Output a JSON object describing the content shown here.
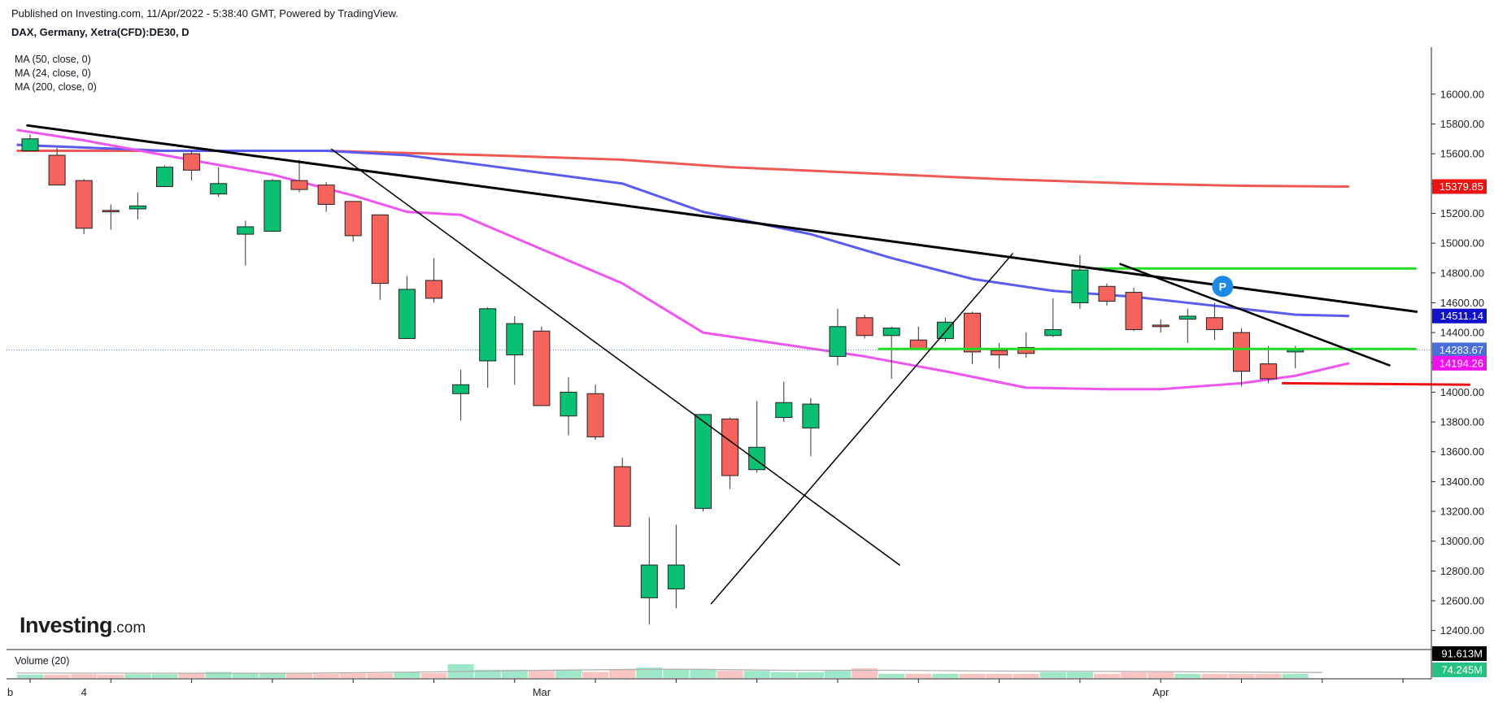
{
  "header": {
    "published": "Published on Investing.com, 11/Apr/2022 - 5:38:40 GMT, Powered by TradingView.",
    "symbol": "DAX, Germany, Xetra(CFD):DE30, D"
  },
  "indicators": {
    "ma50": "MA (50, close, 0)",
    "ma24": "MA (24, close, 0)",
    "ma200": "MA (200, close, 0)",
    "volume": "Volume (20)"
  },
  "logo": {
    "name": "Investing",
    "suffix": ".com"
  },
  "colors": {
    "up": "#0ac173",
    "down": "#f4635c",
    "wick": "#333333",
    "ma50": "#5b5bf0",
    "ma24": "#ee55ee",
    "ma200": "#f05a55",
    "support_green": "#22dd22",
    "support_red": "#ee1111",
    "trendline": "#000000",
    "price_line": "#4a6fd8",
    "vol_up": "#9ee8c8",
    "vol_down": "#f9c4c2",
    "vol_ma": "#b0b0b0"
  },
  "chart_data": {
    "type": "candlestick",
    "y_range": [
      12300,
      16250
    ],
    "y_ticks": [
      "16000.00",
      "15800.00",
      "15600.00",
      "15400.00",
      "15200.00",
      "15000.00",
      "14800.00",
      "14600.00",
      "14400.00",
      "14200.00",
      "14000.00",
      "13800.00",
      "13600.00",
      "13400.00",
      "13200.00",
      "13000.00",
      "12800.00",
      "12600.00",
      "12400.00"
    ],
    "x_labels": [
      {
        "label": "b",
        "bar": -1.1
      },
      {
        "label": "4",
        "bar": 2
      },
      {
        "label": "Mar",
        "bar": 19
      },
      {
        "label": "Apr",
        "bar": 42
      }
    ],
    "candles": [
      {
        "o": 15620,
        "h": 15730,
        "l": 15620,
        "c": 15700
      },
      {
        "o": 15590,
        "h": 15640,
        "l": 15390,
        "c": 15390
      },
      {
        "o": 15420,
        "h": 15430,
        "l": 15060,
        "c": 15100
      },
      {
        "o": 15220,
        "h": 15260,
        "l": 15090,
        "c": 15210
      },
      {
        "o": 15230,
        "h": 15340,
        "l": 15160,
        "c": 15250
      },
      {
        "o": 15380,
        "h": 15520,
        "l": 15380,
        "c": 15510
      },
      {
        "o": 15600,
        "h": 15620,
        "l": 15420,
        "c": 15490
      },
      {
        "o": 15330,
        "h": 15510,
        "l": 15310,
        "c": 15400
      },
      {
        "o": 15060,
        "h": 15150,
        "l": 14850,
        "c": 15110
      },
      {
        "o": 15080,
        "h": 15430,
        "l": 15080,
        "c": 15420
      },
      {
        "o": 15420,
        "h": 15560,
        "l": 15340,
        "c": 15360
      },
      {
        "o": 15390,
        "h": 15410,
        "l": 15210,
        "c": 15260
      },
      {
        "o": 15280,
        "h": 15280,
        "l": 15010,
        "c": 15050
      },
      {
        "o": 15190,
        "h": 15190,
        "l": 14620,
        "c": 14730
      },
      {
        "o": 14360,
        "h": 14780,
        "l": 14360,
        "c": 14690
      },
      {
        "o": 14750,
        "h": 14900,
        "l": 14600,
        "c": 14630
      },
      {
        "o": 13990,
        "h": 14150,
        "l": 13810,
        "c": 14050
      },
      {
        "o": 14210,
        "h": 14570,
        "l": 14030,
        "c": 14560
      },
      {
        "o": 14250,
        "h": 14510,
        "l": 14050,
        "c": 14460
      },
      {
        "o": 14410,
        "h": 14440,
        "l": 13910,
        "c": 13910
      },
      {
        "o": 13840,
        "h": 14100,
        "l": 13710,
        "c": 14000
      },
      {
        "o": 13990,
        "h": 14050,
        "l": 13680,
        "c": 13700
      },
      {
        "o": 13500,
        "h": 13560,
        "l": 13100,
        "c": 13100
      },
      {
        "o": 12620,
        "h": 13160,
        "l": 12440,
        "c": 12840
      },
      {
        "o": 12680,
        "h": 13110,
        "l": 12550,
        "c": 12840
      },
      {
        "o": 13220,
        "h": 13850,
        "l": 13200,
        "c": 13850
      },
      {
        "o": 13820,
        "h": 13830,
        "l": 13350,
        "c": 13440
      },
      {
        "o": 13480,
        "h": 13940,
        "l": 13460,
        "c": 13630
      },
      {
        "o": 13830,
        "h": 14070,
        "l": 13800,
        "c": 13930
      },
      {
        "o": 13760,
        "h": 13960,
        "l": 13570,
        "c": 13920
      },
      {
        "o": 14240,
        "h": 14560,
        "l": 14180,
        "c": 14440
      },
      {
        "o": 14500,
        "h": 14520,
        "l": 14360,
        "c": 14380
      },
      {
        "o": 14380,
        "h": 14440,
        "l": 14090,
        "c": 14430
      },
      {
        "o": 14350,
        "h": 14440,
        "l": 14300,
        "c": 14290
      },
      {
        "o": 14360,
        "h": 14500,
        "l": 14340,
        "c": 14470
      },
      {
        "o": 14530,
        "h": 14540,
        "l": 14190,
        "c": 14270
      },
      {
        "o": 14280,
        "h": 14330,
        "l": 14160,
        "c": 14250
      },
      {
        "o": 14300,
        "h": 14400,
        "l": 14230,
        "c": 14260
      },
      {
        "o": 14380,
        "h": 14630,
        "l": 14370,
        "c": 14420
      },
      {
        "o": 14600,
        "h": 14920,
        "l": 14560,
        "c": 14820
      },
      {
        "o": 14710,
        "h": 14730,
        "l": 14580,
        "c": 14610
      },
      {
        "o": 14670,
        "h": 14700,
        "l": 14410,
        "c": 14420
      },
      {
        "o": 14450,
        "h": 14490,
        "l": 14400,
        "c": 14440
      },
      {
        "o": 14490,
        "h": 14560,
        "l": 14330,
        "c": 14510
      },
      {
        "o": 14500,
        "h": 14600,
        "l": 14350,
        "c": 14420
      },
      {
        "o": 14400,
        "h": 14430,
        "l": 14040,
        "c": 14140
      },
      {
        "o": 14190,
        "h": 14310,
        "l": 14060,
        "c": 14090
      },
      {
        "o": 14270,
        "h": 14310,
        "l": 14160,
        "c": 14283.67
      }
    ],
    "ma50": [
      [
        -0.5,
        15660
      ],
      [
        5,
        15620
      ],
      [
        11,
        15620
      ],
      [
        14,
        15590
      ],
      [
        17,
        15520
      ],
      [
        22,
        15400
      ],
      [
        25,
        15210
      ],
      [
        29,
        15060
      ],
      [
        32,
        14900
      ],
      [
        35,
        14760
      ],
      [
        38,
        14680
      ],
      [
        41,
        14640
      ],
      [
        43,
        14600
      ],
      [
        47,
        14520
      ],
      [
        49,
        14511.14
      ]
    ],
    "ma24": [
      [
        -0.5,
        15760
      ],
      [
        2,
        15690
      ],
      [
        5,
        15590
      ],
      [
        9,
        15460
      ],
      [
        12,
        15320
      ],
      [
        14,
        15210
      ],
      [
        16,
        15190
      ],
      [
        19,
        14960
      ],
      [
        22,
        14730
      ],
      [
        25,
        14400
      ],
      [
        28,
        14320
      ],
      [
        31,
        14240
      ],
      [
        34,
        14140
      ],
      [
        37,
        14030
      ],
      [
        40,
        14020
      ],
      [
        42,
        14020
      ],
      [
        45,
        14060
      ],
      [
        47,
        14110
      ],
      [
        49,
        14194.26
      ]
    ],
    "ma200": [
      [
        -0.5,
        15620
      ],
      [
        11,
        15620
      ],
      [
        17,
        15590
      ],
      [
        22,
        15560
      ],
      [
        26,
        15510
      ],
      [
        31,
        15470
      ],
      [
        36,
        15430
      ],
      [
        41,
        15400
      ],
      [
        45,
        15385
      ],
      [
        49,
        15379.85
      ]
    ],
    "trendlines": [
      {
        "from": [
          -0.1,
          15790
        ],
        "to": [
          51.5,
          14540
        ],
        "weight": 3
      },
      {
        "from": [
          11.2,
          15630
        ],
        "to": [
          32.3,
          12840
        ],
        "weight": 1.5
      },
      {
        "from": [
          25.3,
          12580
        ],
        "to": [
          36.5,
          14930
        ],
        "weight": 1.5
      },
      {
        "from": [
          40.5,
          14860
        ],
        "to": [
          50.5,
          14180
        ],
        "weight": 2.5
      }
    ],
    "support_lines": [
      {
        "from": [
          39.5,
          14830
        ],
        "to": [
          51.5,
          14830
        ],
        "color": "support_green"
      },
      {
        "from": [
          31.5,
          14290
        ],
        "to": [
          51.5,
          14290
        ],
        "color": "support_green"
      },
      {
        "from": [
          46.5,
          14060
        ],
        "to": [
          53.5,
          14050
        ],
        "color": "support_red"
      }
    ],
    "price_labels": [
      {
        "value": 15379.85,
        "text": "15379.85",
        "bg": "#ee1111"
      },
      {
        "value": 14511.14,
        "text": "14511.14",
        "bg": "#1111cc"
      },
      {
        "value": 14283.67,
        "text": "14283.67",
        "bg": "#4a6fd8"
      },
      {
        "value": 14194.26,
        "text": "14194.26",
        "bg": "#ee11ee"
      }
    ],
    "pivot_marker": {
      "bar": 44.3,
      "value": 14710,
      "text": "P"
    },
    "volume": {
      "max_value": 100,
      "values": [
        12,
        12,
        14,
        12,
        14,
        14,
        18,
        22,
        18,
        18,
        15,
        15,
        17,
        17,
        21,
        18,
        50,
        30,
        30,
        26,
        30,
        22,
        33,
        38,
        33,
        33,
        26,
        26,
        21,
        21,
        26,
        35,
        15,
        15,
        15,
        15,
        15,
        15,
        21,
        21,
        15,
        21,
        21,
        15,
        15,
        15,
        15,
        15
      ],
      "ma": [
        [
          -0.5,
          18
        ],
        [
          10,
          17
        ],
        [
          15,
          22
        ],
        [
          19,
          28
        ],
        [
          24,
          32
        ],
        [
          28,
          28
        ],
        [
          32,
          28
        ],
        [
          36,
          25
        ],
        [
          40,
          24
        ],
        [
          44,
          22
        ],
        [
          48,
          20
        ]
      ],
      "labels": [
        {
          "text": "91.613M",
          "bg": "#000000",
          "row": 0
        },
        {
          "text": "74.245M",
          "bg": "#26c281",
          "row": 1
        }
      ]
    }
  }
}
